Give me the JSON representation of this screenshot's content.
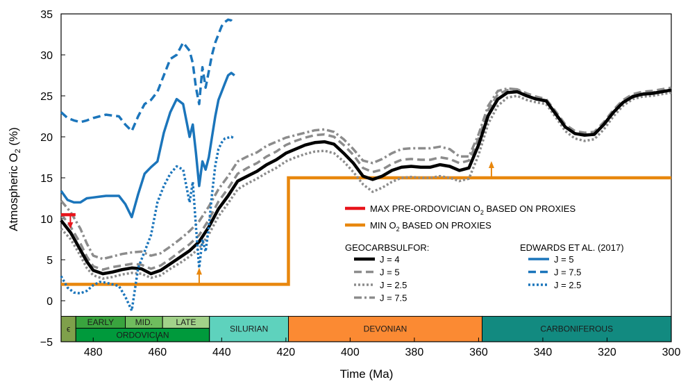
{
  "chart_data": {
    "type": "line",
    "xlabel": "Time (Ma)",
    "ylabel_prefix": "Atmospheric O",
    "ylabel_sub": "2",
    "ylabel_suffix": " (%)",
    "xlim": [
      490,
      300
    ],
    "ylim": [
      -5,
      35
    ],
    "xticks": [
      "480",
      "460",
      "440",
      "420",
      "400",
      "380",
      "360",
      "340",
      "320",
      "300"
    ],
    "yticks": [
      "−5",
      "0",
      "5",
      "10",
      "15",
      "20",
      "25",
      "30",
      "35"
    ],
    "colors": {
      "black": "#000000",
      "gray": "#8c8c8c",
      "blue": "#1b75bb",
      "orange": "#e8870e",
      "red": "#e8141b"
    },
    "series": [
      {
        "name": "J = 4",
        "group": "geocarbsulfor",
        "color": "#000000",
        "dash": "solid",
        "x": [
          490,
          487,
          484,
          482,
          480,
          477,
          474,
          471,
          468,
          465,
          462,
          459,
          456,
          453,
          450,
          447,
          444,
          441,
          438,
          435,
          432,
          429,
          426,
          423,
          420,
          417,
          414,
          411,
          408,
          405,
          402,
          399,
          396,
          393,
          390,
          387,
          384,
          381,
          378,
          375,
          372,
          369,
          366,
          363,
          360,
          357,
          354,
          351,
          348,
          345,
          342,
          339,
          336,
          333,
          330,
          327,
          324,
          321,
          318,
          315,
          312,
          309,
          306,
          303,
          300
        ],
        "y": [
          9.8,
          8.3,
          6.2,
          4.8,
          3.7,
          3.3,
          3.5,
          3.8,
          4.0,
          3.9,
          3.3,
          3.7,
          4.5,
          5.3,
          6.1,
          7.2,
          9.0,
          11.2,
          12.8,
          14.6,
          15.2,
          15.8,
          16.6,
          17.2,
          18.0,
          18.5,
          19.0,
          19.3,
          19.4,
          19.1,
          18.0,
          16.8,
          15.2,
          14.8,
          15.2,
          15.9,
          16.3,
          16.4,
          16.3,
          16.3,
          16.6,
          16.4,
          15.9,
          16.2,
          19.0,
          22.6,
          24.6,
          25.4,
          25.5,
          25.0,
          24.6,
          24.4,
          22.8,
          21.2,
          20.4,
          20.2,
          20.3,
          21.5,
          23.0,
          24.2,
          24.9,
          25.2,
          25.3,
          25.5,
          25.7
        ]
      },
      {
        "name": "J = 5",
        "group": "geocarbsulfor",
        "color": "#8c8c8c",
        "dash": "dashed",
        "x": [
          490,
          487,
          484,
          482,
          480,
          477,
          474,
          471,
          468,
          465,
          462,
          459,
          456,
          453,
          450,
          447,
          444,
          441,
          438,
          435,
          432,
          429,
          426,
          423,
          420,
          417,
          414,
          411,
          408,
          405,
          402,
          399,
          396,
          393,
          390,
          387,
          384,
          381,
          378,
          375,
          372,
          369,
          366,
          363,
          360,
          357,
          354,
          351,
          348,
          345,
          342,
          339,
          336,
          333,
          330,
          327,
          324,
          321,
          318,
          315,
          312,
          309,
          306,
          303,
          300
        ],
        "y": [
          10.6,
          9.0,
          7.0,
          5.4,
          4.2,
          3.8,
          4.1,
          4.3,
          4.5,
          4.4,
          3.9,
          4.3,
          5.1,
          6.0,
          6.9,
          8.0,
          9.9,
          12.1,
          13.7,
          15.5,
          16.2,
          16.8,
          17.6,
          18.2,
          19.0,
          19.5,
          19.9,
          20.2,
          20.3,
          20.0,
          19.0,
          17.8,
          16.2,
          15.7,
          16.0,
          16.7,
          17.2,
          17.3,
          17.2,
          17.2,
          17.5,
          17.3,
          16.8,
          17.1,
          19.8,
          23.3,
          25.2,
          25.7,
          25.8,
          25.3,
          24.9,
          24.6,
          23.1,
          21.5,
          20.7,
          20.5,
          20.6,
          21.8,
          23.3,
          24.5,
          25.2,
          25.5,
          25.6,
          25.8,
          26.0
        ]
      },
      {
        "name": "J = 2.5",
        "group": "geocarbsulfor",
        "color": "#8c8c8c",
        "dash": "dotted",
        "x": [
          490,
          487,
          484,
          482,
          480,
          477,
          474,
          471,
          468,
          465,
          462,
          459,
          456,
          453,
          450,
          447,
          444,
          441,
          438,
          435,
          432,
          429,
          426,
          423,
          420,
          417,
          414,
          411,
          408,
          405,
          402,
          399,
          396,
          393,
          390,
          387,
          384,
          381,
          378,
          375,
          372,
          369,
          366,
          363,
          360,
          357,
          354,
          351,
          348,
          345,
          342,
          339,
          336,
          333,
          330,
          327,
          324,
          321,
          318,
          315,
          312,
          309,
          306,
          303,
          300
        ],
        "y": [
          8.8,
          7.5,
          5.5,
          4.0,
          3.1,
          2.7,
          2.9,
          3.2,
          3.4,
          3.3,
          2.8,
          3.1,
          3.9,
          4.6,
          5.4,
          6.4,
          8.1,
          10.3,
          11.9,
          13.6,
          14.3,
          14.9,
          15.6,
          16.2,
          17.0,
          17.5,
          17.9,
          18.2,
          18.3,
          18.0,
          17.0,
          15.7,
          14.2,
          13.3,
          13.8,
          14.5,
          15.0,
          15.1,
          15.0,
          15.0,
          15.2,
          15.0,
          14.6,
          14.9,
          17.8,
          21.6,
          23.8,
          24.8,
          25.0,
          24.5,
          24.2,
          24.0,
          22.4,
          20.7,
          19.8,
          19.5,
          19.7,
          20.9,
          22.5,
          23.8,
          24.6,
          24.9,
          25.0,
          25.2,
          25.4
        ]
      },
      {
        "name": "J = 7.5",
        "group": "geocarbsulfor",
        "color": "#8c8c8c",
        "dash": "dashdot",
        "x": [
          490,
          487,
          484,
          482,
          480,
          477,
          474,
          471,
          468,
          465,
          462,
          459,
          456,
          453,
          450,
          447,
          444,
          441,
          438,
          435,
          432,
          429,
          426,
          423,
          420,
          417,
          414,
          411,
          408,
          405,
          402,
          399,
          396,
          393,
          390,
          387,
          384,
          381,
          378,
          375,
          372,
          369,
          366,
          363,
          360,
          357,
          354,
          351,
          348,
          345,
          342,
          339,
          336,
          333,
          330,
          327,
          324,
          321,
          318,
          315,
          312,
          309,
          306,
          303,
          300
        ],
        "y": [
          12.2,
          10.8,
          8.8,
          7.0,
          5.5,
          5.1,
          5.4,
          5.7,
          5.9,
          6.0,
          5.5,
          5.8,
          6.6,
          7.5,
          8.5,
          9.7,
          11.5,
          13.6,
          15.2,
          17.0,
          17.6,
          18.1,
          18.9,
          19.4,
          19.9,
          20.2,
          20.5,
          20.8,
          20.9,
          20.6,
          19.7,
          18.5,
          17.1,
          16.8,
          17.3,
          18.0,
          18.5,
          18.6,
          18.6,
          18.6,
          18.8,
          18.5,
          17.6,
          17.6,
          20.3,
          23.8,
          25.6,
          25.9,
          25.8,
          25.0,
          24.6,
          24.3,
          22.8,
          21.2,
          20.4,
          20.2,
          20.3,
          21.5,
          23.0,
          24.3,
          25.0,
          25.3,
          25.4,
          25.6,
          25.8
        ]
      },
      {
        "name": "J = 5",
        "group": "edwards",
        "color": "#1b75bb",
        "dash": "solid",
        "x": [
          490,
          488,
          486,
          484,
          482,
          480,
          478,
          476,
          474,
          472,
          470,
          468,
          466,
          464,
          462,
          460,
          458,
          456,
          454,
          452,
          450,
          449,
          448,
          447,
          446,
          445,
          444,
          443,
          442,
          441,
          440,
          439,
          438,
          437,
          436
        ],
        "y": [
          13.4,
          12.3,
          12.0,
          12.0,
          12.5,
          12.6,
          12.7,
          12.8,
          12.8,
          12.8,
          11.8,
          10.2,
          13.0,
          15.5,
          16.3,
          17.0,
          20.5,
          23.0,
          24.6,
          24.0,
          20.0,
          21.5,
          18.0,
          14.0,
          17.0,
          16.0,
          17.5,
          20.0,
          22.5,
          24.5,
          25.5,
          26.5,
          27.5,
          27.8,
          27.5
        ]
      },
      {
        "name": "J = 7.5",
        "group": "edwards",
        "color": "#1b75bb",
        "dash": "dashed",
        "x": [
          490,
          488,
          486,
          484,
          482,
          480,
          478,
          476,
          474,
          472,
          470,
          468,
          466,
          464,
          462,
          460,
          458,
          456,
          454,
          452,
          450,
          449,
          448,
          447,
          446,
          445,
          444,
          443,
          442,
          441,
          440,
          439,
          438,
          437,
          436
        ],
        "y": [
          23.0,
          22.3,
          22.0,
          21.8,
          22.0,
          22.3,
          22.5,
          22.7,
          22.6,
          22.5,
          21.5,
          20.7,
          22.5,
          24.0,
          24.5,
          25.5,
          27.5,
          29.5,
          30.0,
          31.5,
          30.5,
          29.0,
          26.0,
          24.0,
          28.5,
          26.0,
          28.0,
          30.0,
          31.5,
          32.5,
          33.5,
          34.0,
          34.3,
          34.2,
          33.8
        ]
      },
      {
        "name": "J = 2.5",
        "group": "edwards",
        "color": "#1b75bb",
        "dash": "dotted",
        "x": [
          490,
          488,
          486,
          484,
          482,
          480,
          478,
          476,
          474,
          472,
          470,
          468,
          466,
          464,
          462,
          460,
          458,
          456,
          454,
          452,
          450,
          449,
          448,
          447,
          446,
          445,
          444,
          443,
          442,
          441,
          440,
          439,
          438,
          437,
          436
        ],
        "y": [
          3.0,
          1.6,
          1.0,
          0.9,
          1.2,
          1.9,
          2.3,
          2.2,
          2.0,
          1.8,
          0.5,
          -1.2,
          4.0,
          6.0,
          8.0,
          12.0,
          14.0,
          15.5,
          16.4,
          16.0,
          12.0,
          14.5,
          9.0,
          4.0,
          7.5,
          6.0,
          9.0,
          13.0,
          16.5,
          18.5,
          19.3,
          19.8,
          19.9,
          20.0,
          19.8
        ]
      }
    ],
    "min_o2": {
      "name": "MIN O2 BASED ON PROXIES",
      "color": "#e8870e",
      "x": [
        490,
        419.2,
        419.2,
        300
      ],
      "y": [
        2.0,
        2.0,
        15.0,
        15.0
      ],
      "arrows": [
        {
          "x": 447,
          "y": 2.0
        },
        {
          "x": 356,
          "y": 15.0
        }
      ]
    },
    "max_pre_ordovician": {
      "name": "MAX PRE-ORDOVICIAN O2 BASED ON PROXIES",
      "color": "#e8141b",
      "x1": 490,
      "x2": 485.5,
      "y": 10.5
    },
    "periods": [
      {
        "label": "ϵ",
        "start": 490,
        "end": 485.4,
        "color": "#7fa04b",
        "row": "full"
      },
      {
        "label": "ORDOVICIAN",
        "start": 485.4,
        "end": 443.8,
        "color": "#009a3c",
        "row": "bottom"
      },
      {
        "label": "EARLY",
        "start": 485.4,
        "end": 470.0,
        "color": "#3aa43e",
        "row": "top"
      },
      {
        "label": "MID.",
        "start": 470.0,
        "end": 458.4,
        "color": "#6fbd5e",
        "row": "top"
      },
      {
        "label": "LATE",
        "start": 458.4,
        "end": 443.8,
        "color": "#a2d28a",
        "row": "top"
      },
      {
        "label": "SILURIAN",
        "start": 443.8,
        "end": 419.2,
        "color": "#5ed2bd",
        "row": "full"
      },
      {
        "label": "DEVONIAN",
        "start": 419.2,
        "end": 358.9,
        "color": "#fb8a33",
        "row": "full"
      },
      {
        "label": "CARBONIFEROUS",
        "start": 358.9,
        "end": 300,
        "color": "#128a80",
        "row": "full"
      }
    ],
    "legend": {
      "top": [
        {
          "label_main": "MAX PRE-ORDOVICIAN O",
          "label_sub": "2",
          "label_tail": " BASED ON PROXIES",
          "color": "#e8141b"
        },
        {
          "label_main": "MIN O",
          "label_sub": "2",
          "label_tail": " BASED ON PROXIES",
          "color": "#e8870e"
        }
      ],
      "geocarbsulfor_title": "GEOCARBSULFOR:",
      "geocarbsulfor": [
        {
          "label": "J = 4",
          "color": "#000000",
          "dash": "solid"
        },
        {
          "label": "J = 5",
          "color": "#8c8c8c",
          "dash": "dashed"
        },
        {
          "label": "J = 2.5",
          "color": "#8c8c8c",
          "dash": "dotted"
        },
        {
          "label": "J = 7.5",
          "color": "#8c8c8c",
          "dash": "dashdot"
        }
      ],
      "edwards_title": "EDWARDS ET AL. (2017)",
      "edwards": [
        {
          "label": "J = 5",
          "color": "#1b75bb",
          "dash": "solid"
        },
        {
          "label": "J = 7.5",
          "color": "#1b75bb",
          "dash": "dashed"
        },
        {
          "label": "J = 2.5",
          "color": "#1b75bb",
          "dash": "dotted"
        }
      ]
    }
  }
}
